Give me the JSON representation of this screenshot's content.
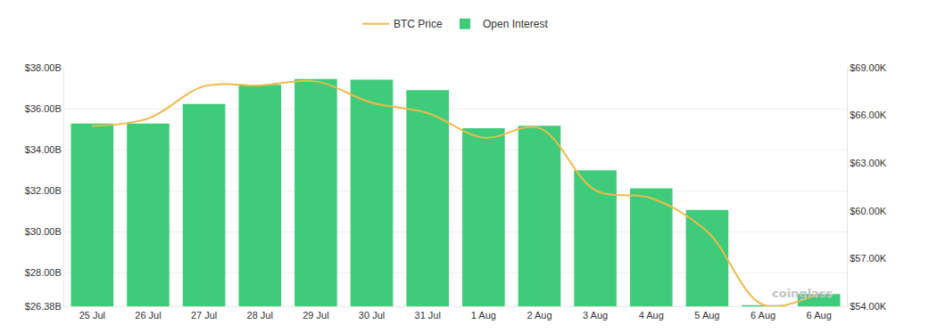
{
  "chart_data": {
    "type": "bar",
    "categories": [
      "25 Jul",
      "26 Jul",
      "27 Jul",
      "28 Jul",
      "29 Jul",
      "30 Jul",
      "31 Jul",
      "1 Aug",
      "2 Aug",
      "3 Aug",
      "4 Aug",
      "5 Aug",
      "6 Aug",
      "6 Aug"
    ],
    "series": [
      {
        "name": "BTC Price",
        "type": "line",
        "color": "#f0b94a",
        "axis": "y2",
        "line_style": "spline",
        "values": [
          65340,
          65800,
          67830,
          67880,
          68140,
          66800,
          66150,
          64600,
          65200,
          61300,
          60800,
          58700,
          54100,
          54800
        ]
      },
      {
        "name": "Open Interest",
        "type": "bar",
        "color": "#3ecc7b",
        "values": [
          35280000000,
          35280000000,
          36230000000,
          37170000000,
          37450000000,
          37410000000,
          36900000000,
          35050000000,
          35170000000,
          33000000000,
          32130000000,
          31070000000,
          26430000000,
          26980000000
        ]
      }
    ],
    "ylim": [
      26380000000,
      38000000000
    ],
    "yticks": [
      {
        "value": 26380000000,
        "label": "$26.38B"
      },
      {
        "value": 28000000000,
        "label": "$28.00B"
      },
      {
        "value": 30000000000,
        "label": "$30.00B"
      },
      {
        "value": 32000000000,
        "label": "$32.00B"
      },
      {
        "value": 34000000000,
        "label": "$34.00B"
      },
      {
        "value": 36000000000,
        "label": "$36.00B"
      },
      {
        "value": 38000000000,
        "label": "$38.00B"
      }
    ],
    "y2lim": [
      54000,
      69000
    ],
    "y2ticks": [
      {
        "value": 54000,
        "label": "$54.00K"
      },
      {
        "value": 57000,
        "label": "$57.00K"
      },
      {
        "value": 60000,
        "label": "$60.00K"
      },
      {
        "value": 63000,
        "label": "$63.00K"
      },
      {
        "value": 66000,
        "label": "$66.00K"
      },
      {
        "value": 69000,
        "label": "$69.00K"
      }
    ],
    "grid": true,
    "legend": "top",
    "annotations": [
      "coinglass"
    ]
  }
}
